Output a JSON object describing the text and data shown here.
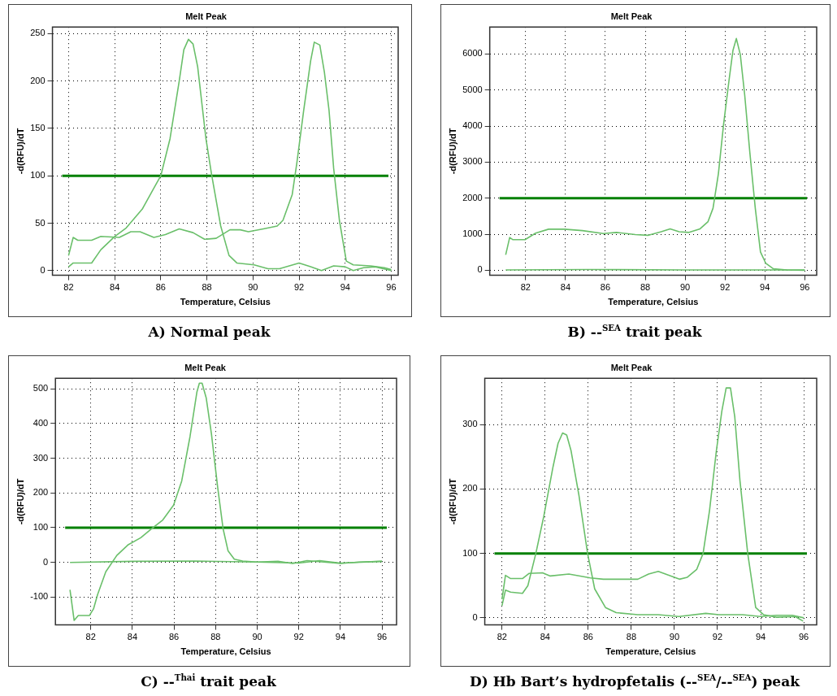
{
  "chart_data": [
    {
      "type": "line",
      "title": "Melt Peak",
      "xlabel": "Temperature, Celsius",
      "ylabel": "-d(RFU)/dT",
      "xlim": [
        81.3,
        96.3
      ],
      "ylim": [
        -5,
        257
      ],
      "xticks": [
        82,
        84,
        86,
        88,
        90,
        92,
        94,
        96
      ],
      "yticks": [
        0,
        50,
        100,
        150,
        200,
        250
      ],
      "grid": true,
      "marker": "none",
      "line_style": "solid",
      "annotations": [
        "A) Normal peak"
      ],
      "ref_lines": [
        {
          "axis": "y",
          "value": 100,
          "color": "#008000"
        }
      ],
      "series": [
        {
          "color": "#6abf6a",
          "x": [
            82,
            82.2,
            83,
            83.4,
            84,
            84.5,
            85.2,
            85.7,
            86,
            86.4,
            86.8,
            87,
            87.2,
            87.4,
            87.6,
            87.96,
            88.2,
            88.6,
            88.96,
            89.3,
            90.05,
            90.65,
            91.15,
            92,
            92.5,
            92.97,
            93.5,
            94,
            94.35,
            94.8,
            95.3,
            96
          ],
          "values": [
            4,
            8,
            8,
            22,
            36,
            45,
            65,
            87,
            100,
            139,
            200,
            233,
            244,
            239,
            215,
            139,
            102,
            47,
            16,
            8,
            6,
            2,
            2,
            8,
            4,
            0,
            5,
            4,
            0,
            3,
            4,
            0
          ]
        },
        {
          "color": "#6abf6a",
          "x": [
            82,
            82.2,
            82.4,
            83,
            83.4,
            84.2,
            84.7,
            85.1,
            85.7,
            86.2,
            86.8,
            87.4,
            87.9,
            88.4,
            89,
            89.45,
            89.8,
            90.45,
            91.05,
            91.3,
            91.7,
            91.9,
            92.2,
            92.5,
            92.66,
            92.9,
            93.1,
            93.3,
            93.5,
            93.75,
            94.05,
            94.35,
            95.1,
            95.7,
            96
          ],
          "values": [
            16,
            35,
            32,
            32,
            36,
            35,
            41,
            41,
            35,
            38,
            44,
            40,
            33,
            34,
            43,
            43,
            41,
            44,
            47,
            53,
            80,
            113,
            169,
            221,
            241,
            238,
            209,
            169,
            108,
            53,
            10,
            6,
            5,
            3,
            1
          ]
        }
      ]
    },
    {
      "type": "line",
      "title": "Melt Peak",
      "xlabel": "Temperature, Celsius",
      "ylabel": "-d(RFU)/dT",
      "xlim": [
        80.2,
        96.6
      ],
      "ylim": [
        -140,
        6750
      ],
      "xticks": [
        82,
        84,
        86,
        88,
        90,
        92,
        94,
        96
      ],
      "yticks": [
        0,
        1000,
        2000,
        3000,
        4000,
        5000,
        6000
      ],
      "grid": true,
      "marker": "none",
      "line_style": "solid",
      "annotations": [
        "B) --$^{SEA}$ trait peak"
      ],
      "ref_lines": [
        {
          "axis": "y",
          "value": 2000,
          "color": "#008000"
        }
      ],
      "series": [
        {
          "color": "#6abf6a",
          "x": [
            81,
            81.2,
            81.35,
            81.97,
            82.5,
            83.15,
            83.94,
            84.85,
            85.9,
            86.56,
            87.5,
            88.13,
            88.8,
            89.25,
            89.7,
            90.2,
            90.75,
            91.15,
            91.4,
            91.67,
            91.93,
            92.2,
            92.4,
            92.57,
            92.77,
            92.99,
            93.25,
            93.52,
            93.78,
            94.05,
            94.43,
            95.1,
            96
          ],
          "values": [
            430,
            910,
            850,
            850,
            1030,
            1140,
            1140,
            1100,
            1020,
            1050,
            990,
            970,
            1070,
            1150,
            1070,
            1050,
            1150,
            1350,
            1720,
            2680,
            4050,
            5260,
            6100,
            6430,
            5980,
            4860,
            3250,
            1720,
            510,
            190,
            40,
            10,
            0
          ]
        },
        {
          "color": "#6abf6a",
          "x": [
            81,
            85,
            90,
            96
          ],
          "values": [
            10,
            20,
            10,
            10
          ]
        }
      ]
    },
    {
      "type": "line",
      "title": "Melt Peak",
      "xlabel": "Temperature, Celsius",
      "ylabel": "-d(RFU)/dT",
      "xlim": [
        80.3,
        96.7
      ],
      "ylim": [
        -180,
        530
      ],
      "xticks": [
        82,
        84,
        86,
        88,
        90,
        92,
        94,
        96
      ],
      "yticks": [
        -100,
        0,
        100,
        200,
        300,
        400,
        500
      ],
      "grid": true,
      "marker": "none",
      "line_style": "solid",
      "annotations": [
        "C) --$^{Thai}$ trait peak"
      ],
      "ref_lines": [
        {
          "axis": "y",
          "value": 100,
          "color": "#008000"
        }
      ],
      "series": [
        {
          "color": "#6abf6a",
          "x": [
            81,
            81.2,
            81.4,
            81.93,
            82.13,
            82.33,
            82.72,
            83.25,
            83.78,
            84.4,
            84.93,
            85.46,
            85.98,
            86.37,
            86.77,
            87.1,
            87.22,
            87.35,
            87.55,
            87.8,
            88.1,
            88.36,
            88.6,
            88.9,
            89.3,
            90,
            91,
            91.7,
            92.4,
            93.2,
            94,
            94.9,
            96
          ],
          "values": [
            -79,
            -167,
            -153,
            -153,
            -134,
            -92,
            -27,
            20,
            50,
            71,
            97,
            122,
            165,
            234,
            362,
            490,
            516,
            516,
            473,
            370,
            216,
            97,
            33,
            9,
            4,
            1,
            3,
            -3,
            5,
            1,
            -3,
            1,
            3
          ]
        },
        {
          "color": "#6abf6a",
          "x": [
            81,
            84,
            87,
            90,
            92,
            93,
            94,
            96
          ],
          "values": [
            0,
            3,
            4,
            1,
            -2,
            5,
            -2,
            3
          ]
        }
      ]
    },
    {
      "type": "line",
      "title": "Melt Peak",
      "xlabel": "Temperature, Celsius",
      "ylabel": "-d(RFU)/dT",
      "xlim": [
        81.2,
        96.6
      ],
      "ylim": [
        -11,
        372
      ],
      "xticks": [
        82,
        84,
        86,
        88,
        90,
        92,
        94,
        96
      ],
      "yticks": [
        0,
        100,
        200,
        300
      ],
      "grid": true,
      "marker": "none",
      "line_style": "solid",
      "annotations": [
        "D) Hb Bart’s hydropfetalis (--$^{SEA}$/--$^{SEA}$) peak"
      ],
      "ref_lines": [
        {
          "axis": "y",
          "value": 100,
          "color": "#008000"
        }
      ],
      "series": [
        {
          "color": "#6abf6a",
          "x": [
            82,
            82.16,
            82.4,
            82.95,
            83.2,
            83.57,
            83.94,
            84.37,
            84.6,
            84.81,
            85,
            85.2,
            85.57,
            85.97,
            86.3,
            86.8,
            87.3,
            88.3,
            89.25,
            90.2,
            91.45,
            92.06,
            93.16,
            94,
            94.74,
            95.47,
            96
          ],
          "values": [
            19,
            43,
            40,
            38,
            50,
            100,
            158,
            235,
            271,
            287,
            284,
            260,
            190,
            100,
            45,
            16,
            8,
            5,
            5,
            2,
            7,
            5,
            5,
            2,
            4,
            4,
            0
          ]
        },
        {
          "color": "#6abf6a",
          "x": [
            82,
            82.16,
            82.4,
            82.95,
            83.26,
            83.88,
            84.24,
            85.1,
            86.1,
            86.7,
            87.8,
            88.3,
            88.8,
            89.25,
            89.74,
            90.23,
            90.6,
            91.03,
            91.33,
            91.63,
            91.94,
            92.2,
            92.4,
            92.6,
            92.8,
            93.04,
            93.4,
            93.77,
            94.13,
            94.74,
            95.6,
            95.97
          ],
          "values": [
            29,
            66,
            61,
            61,
            69,
            70,
            65,
            68,
            62,
            60,
            60,
            60,
            68,
            72,
            66,
            60,
            63,
            75,
            100,
            167,
            258,
            321,
            357,
            357,
            312,
            213,
            100,
            16,
            5,
            1,
            2,
            -5
          ]
        }
      ]
    }
  ]
}
